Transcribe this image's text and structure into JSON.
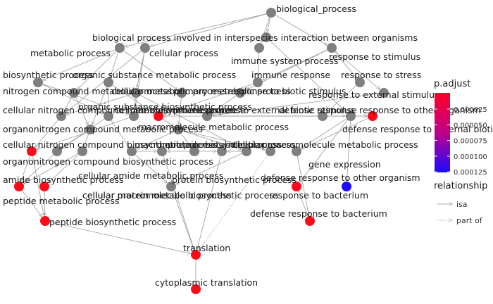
{
  "graph": {
    "nodes": [
      {
        "id": "bp",
        "label": "biological_process",
        "color": "#7f7f7f"
      },
      {
        "id": "interspecies",
        "label": "biological process involved in interspecies interaction between organisms",
        "color": "#7f7f7f"
      },
      {
        "id": "metabolic",
        "label": "metabolic process",
        "color": "#7f7f7f"
      },
      {
        "id": "cellular",
        "label": "cellular process",
        "color": "#7f7f7f"
      },
      {
        "id": "immune_sys",
        "label": "immune system process",
        "color": "#7f7f7f"
      },
      {
        "id": "resp_stim",
        "label": "response to stimulus",
        "color": "#7f7f7f"
      },
      {
        "id": "biosynthetic",
        "label": "biosynthetic process",
        "color": "#7f7f7f"
      },
      {
        "id": "org_sub",
        "label": "organic substance metabolic process",
        "color": "#7f7f7f"
      },
      {
        "id": "immune_resp",
        "label": "immune response",
        "color": "#7f7f7f"
      },
      {
        "id": "resp_stress",
        "label": "response to stress",
        "color": "#7f7f7f"
      },
      {
        "id": "nitrogen",
        "label": "nitrogen compound metabolic process",
        "color": "#7f7f7f"
      },
      {
        "id": "cell_metab",
        "label": "cellular metabolic process",
        "color": "#7f7f7f"
      },
      {
        "id": "primary",
        "label": "primary metabolic process",
        "color": "#7f7f7f"
      },
      {
        "id": "resp_biotic",
        "label": "response to biotic stimulus",
        "color": "#7f7f7f"
      },
      {
        "id": "resp_ext",
        "label": "response to external stimulus",
        "color": "#7f7f7f"
      },
      {
        "id": "cell_nitrogen",
        "label": "cellular nitrogen compound metabolic process",
        "color": "#7f7f7f"
      },
      {
        "id": "org_sub_bio",
        "label": "organic substance biosynthetic process",
        "color": "#7f7f7f"
      },
      {
        "id": "cell_bio",
        "label": "cellular biosynthetic process",
        "color": "#7f7f7f"
      },
      {
        "id": "innate",
        "label": "innate immune response",
        "color": "#ff0a1a"
      },
      {
        "id": "resp_ext_biotic",
        "label": "response to external biotic stimulus",
        "color": "#7f7f7f"
      },
      {
        "id": "defense",
        "label": "defense response",
        "color": "#7f7f7f"
      },
      {
        "id": "resp_other_org",
        "label": "response to other organism",
        "color": "#7f7f7f"
      },
      {
        "id": "organonitrogen",
        "label": "organonitrogen compound metabolic process",
        "color": "#7f7f7f"
      },
      {
        "id": "macromolecule",
        "label": "macromolecule metabolic process",
        "color": "#7f7f7f"
      },
      {
        "id": "defense_ext",
        "label": "defense response to external biotic stimulus",
        "color": "#ff0a1a"
      },
      {
        "id": "cell_nitrogen_bio",
        "label": "cellular nitrogen compound biosynthetic process",
        "color": "#ff0a1a"
      },
      {
        "id": "macro_bio",
        "label": "macromolecule biosynthetic process",
        "color": "#7f7f7f"
      },
      {
        "id": "protein_metab",
        "label": "protein metabolic process",
        "color": "#7f7f7f"
      },
      {
        "id": "cell_macro",
        "label": "cellular macromolecule metabolic process",
        "color": "#7f7f7f"
      },
      {
        "id": "gene_expr",
        "label": "gene expression",
        "color": "#7f7f7f"
      },
      {
        "id": "organonitrogen_bio",
        "label": "organonitrogen compound biosynthetic process",
        "color": "#7f7f7f"
      },
      {
        "id": "cell_amide",
        "label": "cellular amide metabolic process",
        "color": "#7f7f7f"
      },
      {
        "id": "protein_bio",
        "label": "protein biosynthetic process",
        "color": "#7f7f7f"
      },
      {
        "id": "cell_protein",
        "label": "cellular protein metabolic process",
        "color": "#7f7f7f"
      },
      {
        "id": "defense_other",
        "label": "defense response to other organism",
        "color": "#7f7f7f"
      },
      {
        "id": "amide_bio",
        "label": "amide biosynthetic process",
        "color": "#ff0a1a"
      },
      {
        "id": "peptide_metab",
        "label": "peptide metabolic process",
        "color": "#ff0a1a"
      },
      {
        "id": "cell_macro_bio",
        "label": "cellular macromolecule biosynthetic process",
        "color": "#7f7f7f"
      },
      {
        "id": "resp_bacterium",
        "label": "response to bacterium",
        "color": "#ff0a1a"
      },
      {
        "id": "resp_bact_blue",
        "label": "",
        "color": "#1a0aff"
      },
      {
        "id": "defense_bacterium",
        "label": "defense response to bacterium",
        "color": "#ff0a1a"
      },
      {
        "id": "peptide_bio",
        "label": "peptide biosynthetic process",
        "color": "#ff0a1a"
      },
      {
        "id": "translation",
        "label": "translation",
        "color": "#ff0a1a"
      },
      {
        "id": "cyto_translation",
        "label": "cytoplasmic translation",
        "color": "#ff0a1a"
      }
    ],
    "edges": [
      {
        "from": "bp",
        "to": "interspecies",
        "type": "isa"
      },
      {
        "from": "bp",
        "to": "metabolic",
        "type": "isa"
      },
      {
        "from": "bp",
        "to": "cellular",
        "type": "isa"
      },
      {
        "from": "bp",
        "to": "immune_sys",
        "type": "isa"
      },
      {
        "from": "bp",
        "to": "resp_stim",
        "type": "isa"
      },
      {
        "from": "metabolic",
        "to": "biosynthetic",
        "type": "isa"
      },
      {
        "from": "metabolic",
        "to": "org_sub",
        "type": "isa"
      },
      {
        "from": "metabolic",
        "to": "nitrogen",
        "type": "isa"
      },
      {
        "from": "metabolic",
        "to": "primary",
        "type": "isa"
      },
      {
        "from": "cellular",
        "to": "cell_metab",
        "type": "isa"
      },
      {
        "from": "cellular",
        "to": "cell_bio",
        "type": "isa"
      },
      {
        "from": "cellular",
        "to": "cell_nitrogen",
        "type": "isa"
      },
      {
        "from": "immune_sys",
        "to": "immune_resp",
        "type": "isa"
      },
      {
        "from": "resp_stim",
        "to": "immune_resp",
        "type": "isa"
      },
      {
        "from": "resp_stim",
        "to": "resp_stress",
        "type": "isa"
      },
      {
        "from": "resp_stim",
        "to": "resp_biotic",
        "type": "isa"
      },
      {
        "from": "resp_stim",
        "to": "resp_ext",
        "type": "isa"
      },
      {
        "from": "interspecies",
        "to": "resp_other_org",
        "type": "isa"
      },
      {
        "from": "immune_resp",
        "to": "innate",
        "type": "isa"
      },
      {
        "from": "resp_stress",
        "to": "defense",
        "type": "isa"
      },
      {
        "from": "resp_biotic",
        "to": "resp_ext_biotic",
        "type": "isa"
      },
      {
        "from": "resp_ext",
        "to": "resp_ext_biotic",
        "type": "isa"
      },
      {
        "from": "resp_ext_biotic",
        "to": "resp_other_org",
        "type": "isa"
      },
      {
        "from": "defense",
        "to": "defense_ext",
        "type": "isa"
      },
      {
        "from": "resp_ext_biotic",
        "to": "defense_ext",
        "type": "isa"
      },
      {
        "from": "defense",
        "to": "innate",
        "type": "isa"
      },
      {
        "from": "resp_other_org",
        "to": "defense_other",
        "type": "isa"
      },
      {
        "from": "defense_ext",
        "to": "defense_other",
        "type": "isa"
      },
      {
        "from": "resp_other_org",
        "to": "resp_bacterium",
        "type": "isa"
      },
      {
        "from": "resp_other_org",
        "to": "resp_bact_blue",
        "type": "isa"
      },
      {
        "from": "defense_other",
        "to": "defense_bacterium",
        "type": "isa"
      },
      {
        "from": "resp_bacterium",
        "to": "defense_bacterium",
        "type": "isa"
      },
      {
        "from": "biosynthetic",
        "to": "org_sub_bio",
        "type": "isa"
      },
      {
        "from": "biosynthetic",
        "to": "cell_bio",
        "type": "isa"
      },
      {
        "from": "org_sub",
        "to": "org_sub_bio",
        "type": "isa"
      },
      {
        "from": "org_sub",
        "to": "macromolecule",
        "type": "isa"
      },
      {
        "from": "org_sub",
        "to": "organonitrogen",
        "type": "isa"
      },
      {
        "from": "nitrogen",
        "to": "cell_nitrogen",
        "type": "isa"
      },
      {
        "from": "nitrogen",
        "to": "organonitrogen",
        "type": "isa"
      },
      {
        "from": "primary",
        "to": "macromolecule",
        "type": "isa"
      },
      {
        "from": "cell_metab",
        "to": "cell_bio",
        "type": "isa"
      },
      {
        "from": "cell_metab",
        "to": "cell_macro",
        "type": "isa"
      },
      {
        "from": "cell_metab",
        "to": "cell_nitrogen",
        "type": "isa"
      },
      {
        "from": "cell_nitrogen",
        "to": "cell_nitrogen_bio",
        "type": "isa"
      },
      {
        "from": "cell_bio",
        "to": "cell_nitrogen_bio",
        "type": "isa"
      },
      {
        "from": "org_sub_bio",
        "to": "organonitrogen_bio",
        "type": "isa"
      },
      {
        "from": "organonitrogen",
        "to": "organonitrogen_bio",
        "type": "isa"
      },
      {
        "from": "organonitrogen",
        "to": "cell_amide",
        "type": "isa"
      },
      {
        "from": "macromolecule",
        "to": "macro_bio",
        "type": "isa"
      },
      {
        "from": "macromolecule",
        "to": "protein_metab",
        "type": "isa"
      },
      {
        "from": "macromolecule",
        "to": "gene_expr",
        "type": "isa"
      },
      {
        "from": "macromolecule",
        "to": "cell_macro",
        "type": "isa"
      },
      {
        "from": "org_sub_bio",
        "to": "macro_bio",
        "type": "isa"
      },
      {
        "from": "protein_metab",
        "to": "protein_bio",
        "type": "isa"
      },
      {
        "from": "protein_metab",
        "to": "cell_protein",
        "type": "isa"
      },
      {
        "from": "macro_bio",
        "to": "protein_bio",
        "type": "isa"
      },
      {
        "from": "macro_bio",
        "to": "cell_macro_bio",
        "type": "isa"
      },
      {
        "from": "cell_macro",
        "to": "cell_protein",
        "type": "isa"
      },
      {
        "from": "cell_macro",
        "to": "cell_macro_bio",
        "type": "isa"
      },
      {
        "from": "cell_nitrogen_bio",
        "to": "amide_bio",
        "type": "isa"
      },
      {
        "from": "organonitrogen_bio",
        "to": "amide_bio",
        "type": "isa"
      },
      {
        "from": "cell_amide",
        "to": "amide_bio",
        "type": "isa"
      },
      {
        "from": "cell_amide",
        "to": "peptide_metab",
        "type": "isa"
      },
      {
        "from": "amide_bio",
        "to": "peptide_bio",
        "type": "isa"
      },
      {
        "from": "peptide_metab",
        "to": "peptide_bio",
        "type": "isa"
      },
      {
        "from": "cell_nitrogen_bio",
        "to": "peptide_bio",
        "type": "isa"
      },
      {
        "from": "peptide_bio",
        "to": "translation",
        "type": "isa"
      },
      {
        "from": "protein_bio",
        "to": "translation",
        "type": "isa"
      },
      {
        "from": "cell_protein",
        "to": "translation",
        "type": "isa"
      },
      {
        "from": "cell_macro_bio",
        "to": "translation",
        "type": "isa"
      },
      {
        "from": "gene_expr",
        "to": "translation",
        "type": "part_of"
      },
      {
        "from": "translation",
        "to": "cyto_translation",
        "type": "isa"
      }
    ]
  },
  "legend": {
    "padjust": {
      "title": "p.adjust",
      "ticks": [
        "0.000025",
        "0.000050",
        "0.000075",
        "0.000100",
        "0.000125"
      ],
      "gradient": {
        "low": "#ff0026",
        "high": "#1a0aff"
      }
    },
    "relationship": {
      "title": "relationship",
      "items": [
        {
          "label": "isa",
          "style": "solid"
        },
        {
          "label": "part of",
          "style": "dotted"
        }
      ]
    }
  }
}
